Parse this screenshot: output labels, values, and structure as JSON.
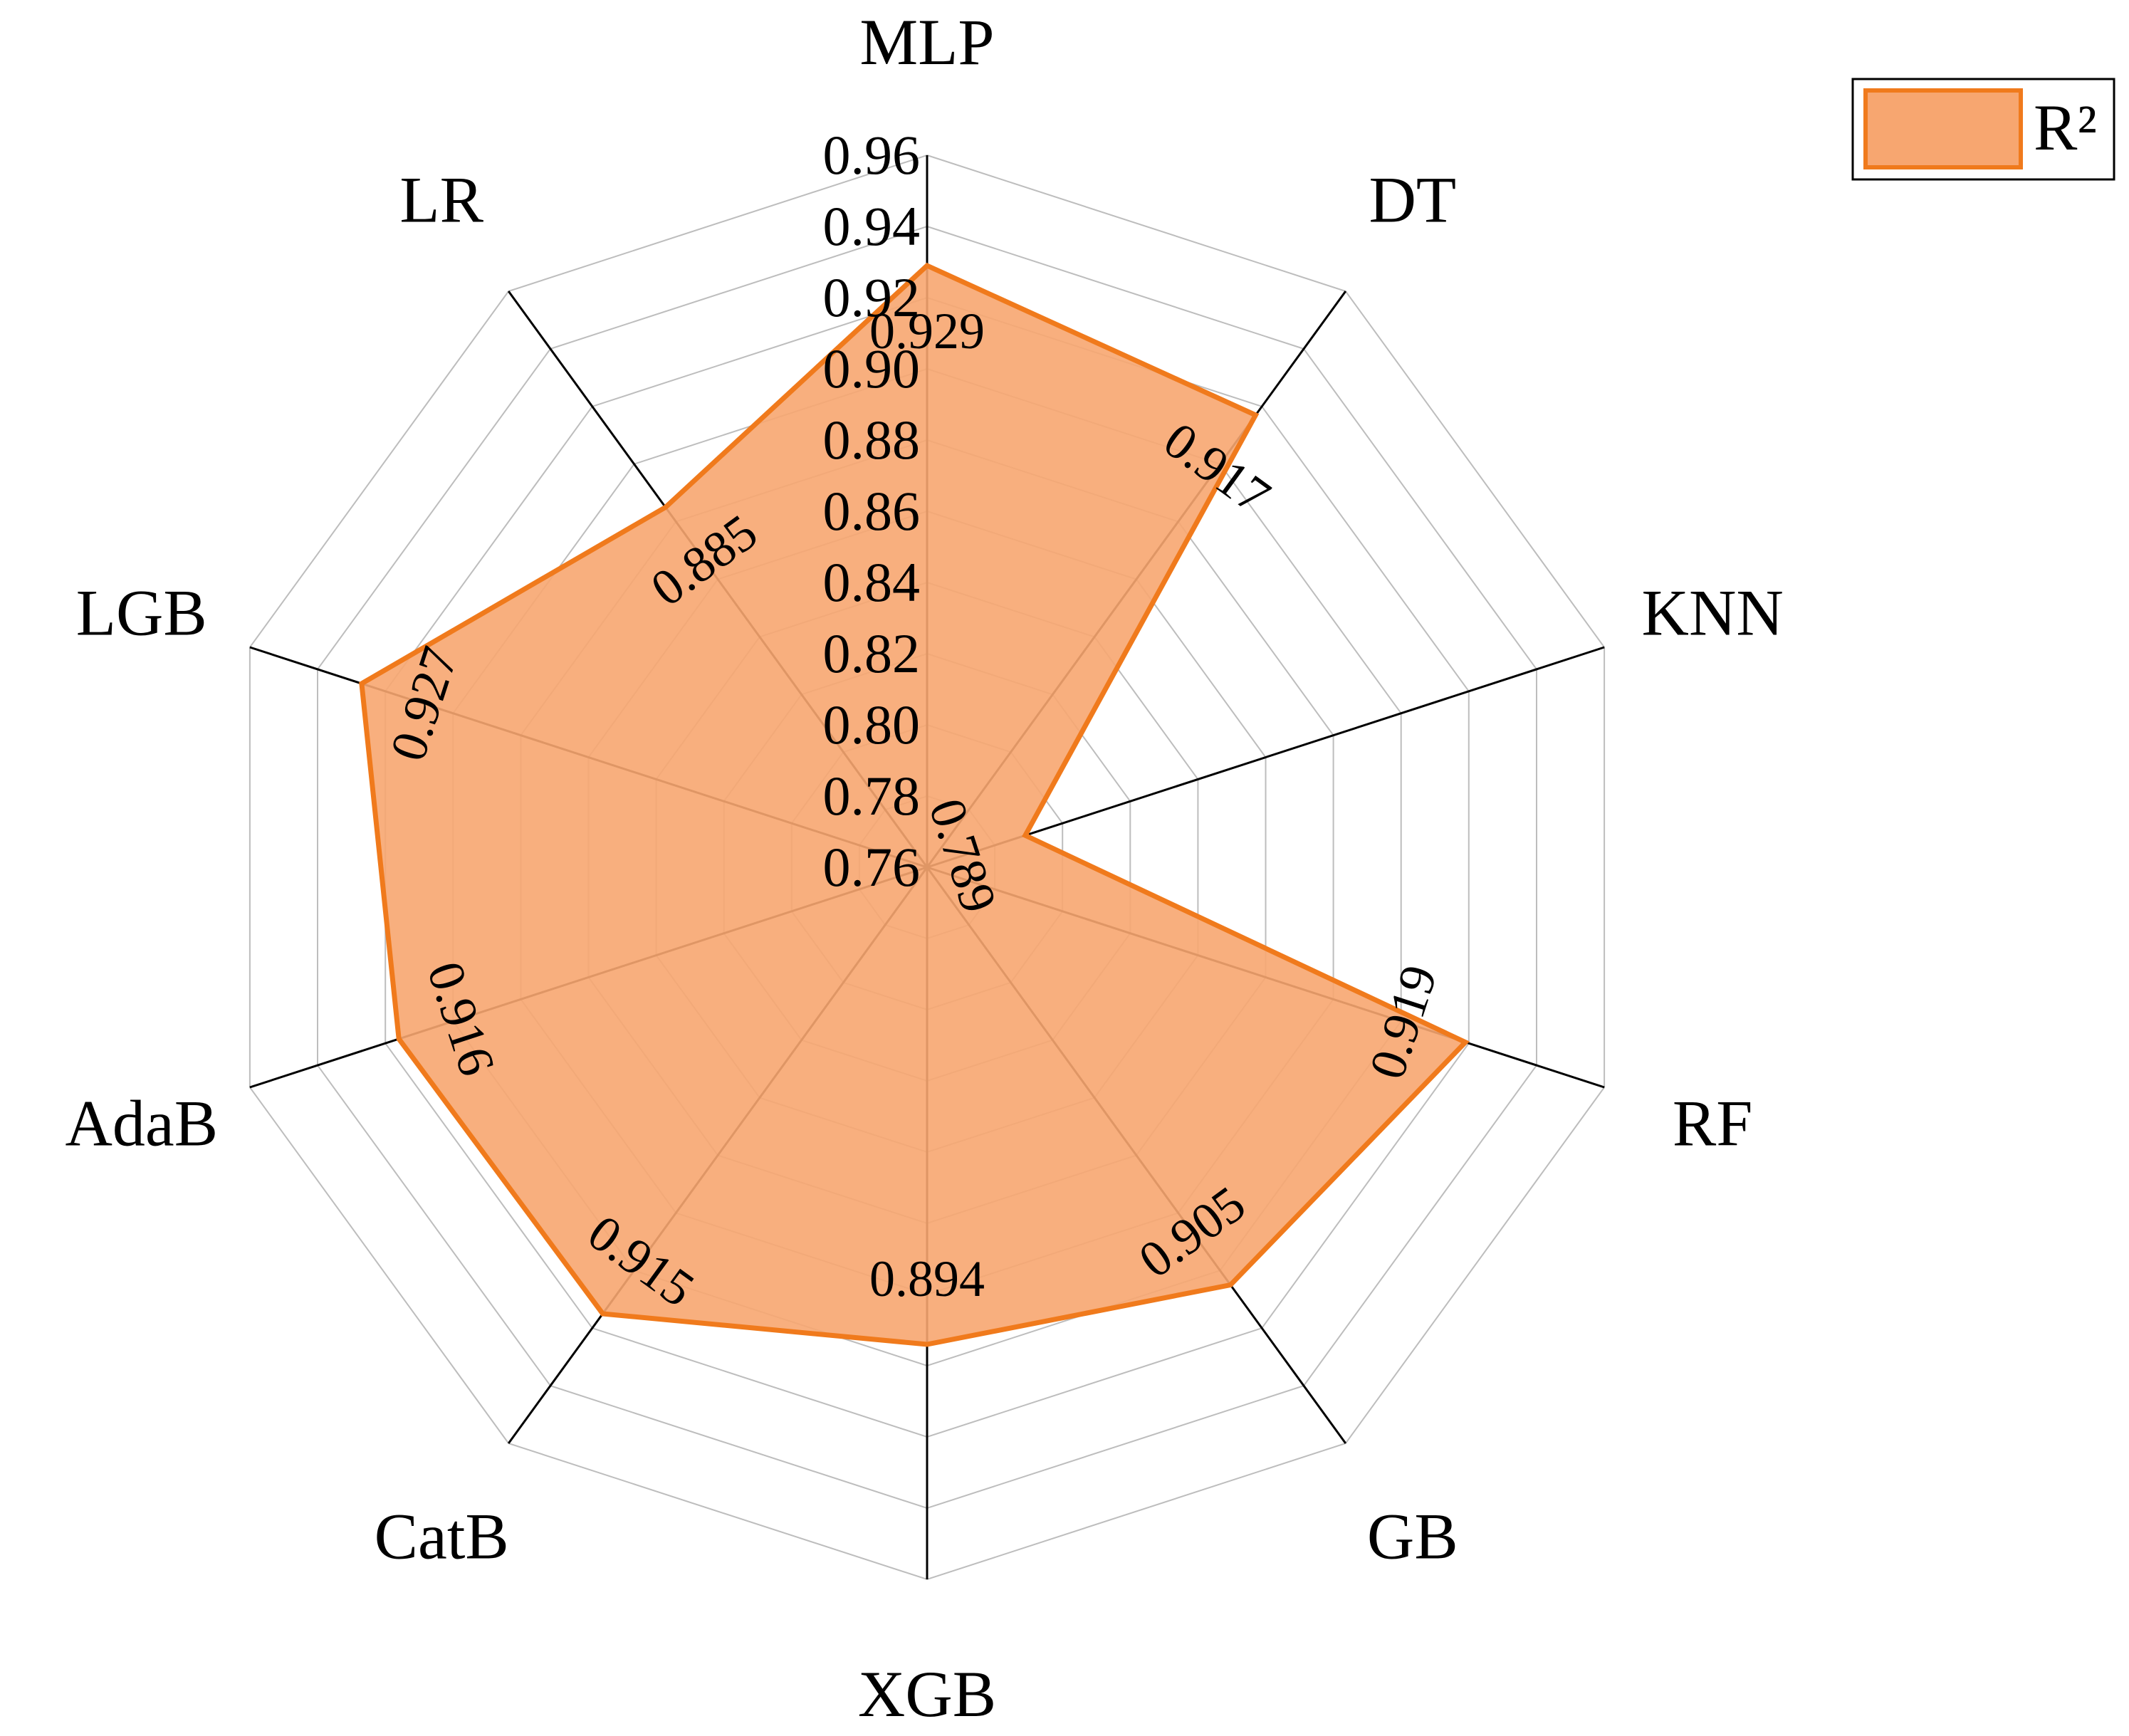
{
  "chart_data": {
    "type": "radar",
    "categories": [
      "MLP",
      "DT",
      "KNN",
      "RF",
      "GB",
      "XGB",
      "CatB",
      "AdaB",
      "LGB",
      "LR"
    ],
    "series": [
      {
        "name": "R²",
        "values": [
          0.929,
          0.917,
          0.789,
          0.919,
          0.905,
          0.894,
          0.915,
          0.916,
          0.927,
          0.885
        ]
      }
    ],
    "value_labels": [
      "0.929",
      "0.917",
      "0.789",
      "0.919",
      "0.905",
      "0.894",
      "0.915",
      "0.916",
      "0.927",
      "0.885"
    ],
    "rlim": [
      0.76,
      0.96
    ],
    "ticks": [
      "0.76",
      "0.78",
      "0.80",
      "0.82",
      "0.84",
      "0.86",
      "0.88",
      "0.90",
      "0.92",
      "0.94",
      "0.96"
    ],
    "grid": true,
    "legend_position": "top-right",
    "colors": {
      "fill": "#f7a670",
      "stroke": "#f07a1c",
      "grid": "#bdbdbd",
      "axis": "#000000"
    }
  }
}
